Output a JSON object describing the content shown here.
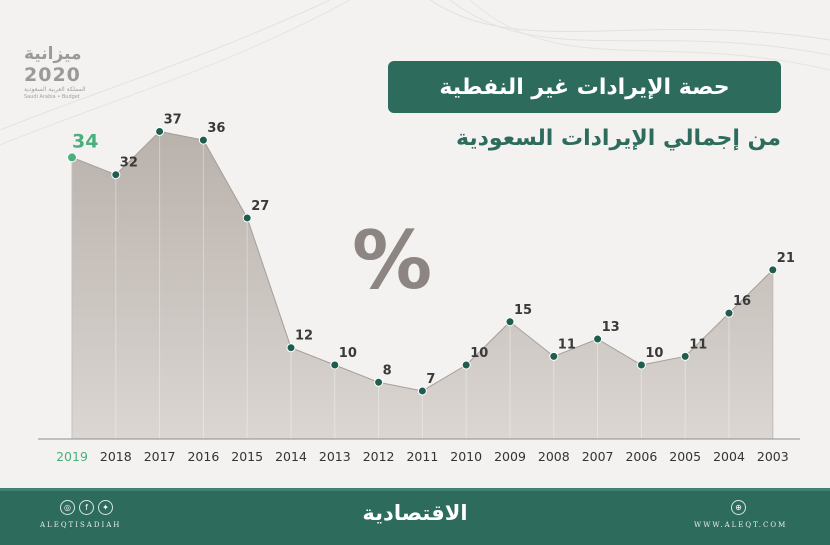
{
  "header": {
    "title_line1": "حصة الإيرادات غير النفطية",
    "title_line2": "من إجمالي الإيرادات السعودية",
    "unit_symbol": "%"
  },
  "logo": {
    "word": "ميزانية",
    "year": "2020",
    "sub_arabic": "المملكة العربية السعودية",
    "sub_english": "Saudi Arabia • Budget"
  },
  "chart_data": {
    "type": "area",
    "title": "حصة الإيرادات غير النفطية من إجمالي الإيرادات السعودية",
    "unit": "%",
    "categories": [
      "2019",
      "2018",
      "2017",
      "2016",
      "2015",
      "2014",
      "2013",
      "2012",
      "2011",
      "2010",
      "2009",
      "2008",
      "2007",
      "2006",
      "2005",
      "2004",
      "2003"
    ],
    "values": [
      34,
      32,
      37,
      36,
      27,
      12,
      10,
      8,
      7,
      10,
      15,
      11,
      13,
      10,
      11,
      16,
      21
    ],
    "ylim": [
      0,
      40
    ],
    "grid": false,
    "highlight_category": "2019"
  },
  "colors": {
    "brand_green": "#2d6b5d",
    "highlight_green": "#4caf7d",
    "marker": "#1f5d4f",
    "axis": "#8f8f8f"
  },
  "footer": {
    "social_icons": [
      "instagram-icon",
      "facebook-icon",
      "twitter-icon"
    ],
    "handle": "ALEQTISADIAH",
    "brand": "الاقتصادية",
    "website": "WWW.ALEQT.COM"
  }
}
